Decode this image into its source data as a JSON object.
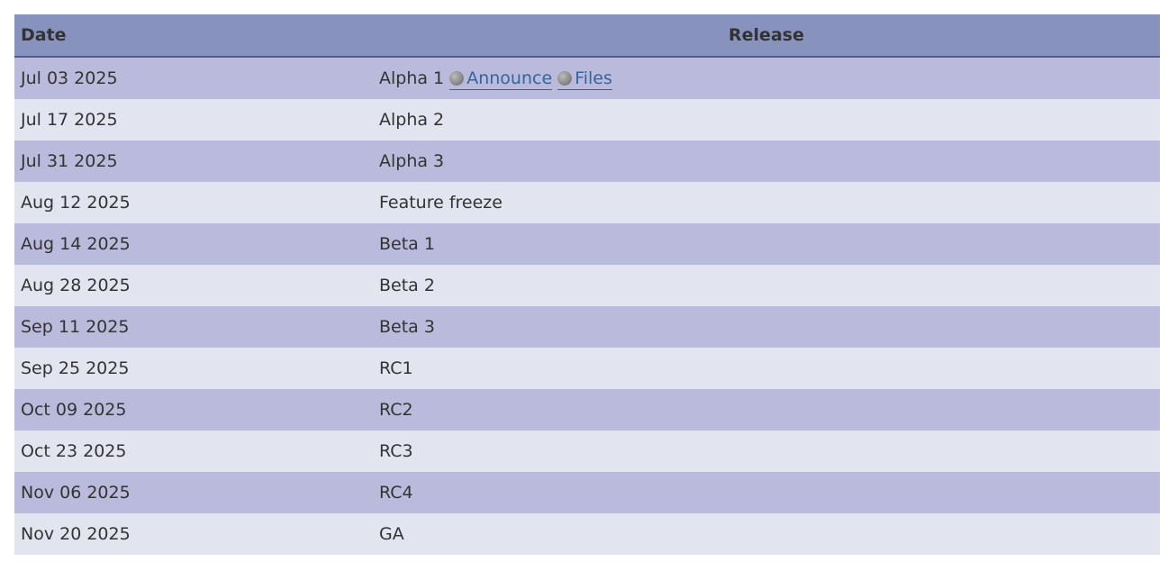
{
  "headers": {
    "date": "Date",
    "release": "Release"
  },
  "rows": [
    {
      "date": "Jul 03 2025",
      "release": "Alpha 1",
      "links": [
        {
          "label": "Announce",
          "icon": "globe-icon"
        },
        {
          "label": "Files",
          "icon": "globe-icon"
        }
      ]
    },
    {
      "date": "Jul 17 2025",
      "release": "Alpha 2"
    },
    {
      "date": "Jul 31 2025",
      "release": "Alpha 3"
    },
    {
      "date": "Aug 12 2025",
      "release": "Feature freeze"
    },
    {
      "date": "Aug 14 2025",
      "release": "Beta 1"
    },
    {
      "date": "Aug 28 2025",
      "release": "Beta 2"
    },
    {
      "date": "Sep 11 2025",
      "release": "Beta 3"
    },
    {
      "date": "Sep 25 2025",
      "release": "RC1"
    },
    {
      "date": "Oct 09 2025",
      "release": "RC2"
    },
    {
      "date": "Oct 23 2025",
      "release": "RC3"
    },
    {
      "date": "Nov 06 2025",
      "release": "RC4"
    },
    {
      "date": "Nov 20 2025",
      "release": "GA"
    }
  ],
  "colors": {
    "header": "#8892bf",
    "odd_row": "#babadc",
    "even_row": "#e2e4ef",
    "link": "#336699"
  }
}
